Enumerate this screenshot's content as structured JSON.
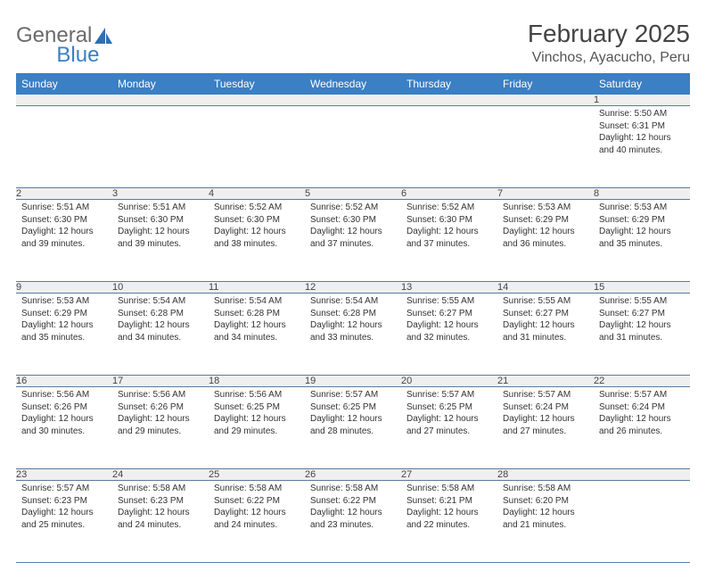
{
  "brand": {
    "part1": "General",
    "part2": "Blue",
    "logo_color": "#2f6fb0",
    "text_gray": "#6b6b6b"
  },
  "header": {
    "title": "February 2025",
    "location": "Vinchos, Ayacucho, Peru"
  },
  "colors": {
    "header_bg": "#3b7fc4",
    "header_text": "#ffffff",
    "daynum_bg": "#efefef",
    "row_border": "#5a7aa0",
    "body_text": "#333333"
  },
  "typography": {
    "title_fontsize": 28,
    "location_fontsize": 16,
    "weekday_fontsize": 12,
    "daynum_fontsize": 11,
    "cell_fontsize": 10
  },
  "weekdays": [
    "Sunday",
    "Monday",
    "Tuesday",
    "Wednesday",
    "Thursday",
    "Friday",
    "Saturday"
  ],
  "weeks": [
    [
      null,
      null,
      null,
      null,
      null,
      null,
      {
        "day": "1",
        "sunrise": "Sunrise: 5:50 AM",
        "sunset": "Sunset: 6:31 PM",
        "daylight": "Daylight: 12 hours and 40 minutes."
      }
    ],
    [
      {
        "day": "2",
        "sunrise": "Sunrise: 5:51 AM",
        "sunset": "Sunset: 6:30 PM",
        "daylight": "Daylight: 12 hours and 39 minutes."
      },
      {
        "day": "3",
        "sunrise": "Sunrise: 5:51 AM",
        "sunset": "Sunset: 6:30 PM",
        "daylight": "Daylight: 12 hours and 39 minutes."
      },
      {
        "day": "4",
        "sunrise": "Sunrise: 5:52 AM",
        "sunset": "Sunset: 6:30 PM",
        "daylight": "Daylight: 12 hours and 38 minutes."
      },
      {
        "day": "5",
        "sunrise": "Sunrise: 5:52 AM",
        "sunset": "Sunset: 6:30 PM",
        "daylight": "Daylight: 12 hours and 37 minutes."
      },
      {
        "day": "6",
        "sunrise": "Sunrise: 5:52 AM",
        "sunset": "Sunset: 6:30 PM",
        "daylight": "Daylight: 12 hours and 37 minutes."
      },
      {
        "day": "7",
        "sunrise": "Sunrise: 5:53 AM",
        "sunset": "Sunset: 6:29 PM",
        "daylight": "Daylight: 12 hours and 36 minutes."
      },
      {
        "day": "8",
        "sunrise": "Sunrise: 5:53 AM",
        "sunset": "Sunset: 6:29 PM",
        "daylight": "Daylight: 12 hours and 35 minutes."
      }
    ],
    [
      {
        "day": "9",
        "sunrise": "Sunrise: 5:53 AM",
        "sunset": "Sunset: 6:29 PM",
        "daylight": "Daylight: 12 hours and 35 minutes."
      },
      {
        "day": "10",
        "sunrise": "Sunrise: 5:54 AM",
        "sunset": "Sunset: 6:28 PM",
        "daylight": "Daylight: 12 hours and 34 minutes."
      },
      {
        "day": "11",
        "sunrise": "Sunrise: 5:54 AM",
        "sunset": "Sunset: 6:28 PM",
        "daylight": "Daylight: 12 hours and 34 minutes."
      },
      {
        "day": "12",
        "sunrise": "Sunrise: 5:54 AM",
        "sunset": "Sunset: 6:28 PM",
        "daylight": "Daylight: 12 hours and 33 minutes."
      },
      {
        "day": "13",
        "sunrise": "Sunrise: 5:55 AM",
        "sunset": "Sunset: 6:27 PM",
        "daylight": "Daylight: 12 hours and 32 minutes."
      },
      {
        "day": "14",
        "sunrise": "Sunrise: 5:55 AM",
        "sunset": "Sunset: 6:27 PM",
        "daylight": "Daylight: 12 hours and 31 minutes."
      },
      {
        "day": "15",
        "sunrise": "Sunrise: 5:55 AM",
        "sunset": "Sunset: 6:27 PM",
        "daylight": "Daylight: 12 hours and 31 minutes."
      }
    ],
    [
      {
        "day": "16",
        "sunrise": "Sunrise: 5:56 AM",
        "sunset": "Sunset: 6:26 PM",
        "daylight": "Daylight: 12 hours and 30 minutes."
      },
      {
        "day": "17",
        "sunrise": "Sunrise: 5:56 AM",
        "sunset": "Sunset: 6:26 PM",
        "daylight": "Daylight: 12 hours and 29 minutes."
      },
      {
        "day": "18",
        "sunrise": "Sunrise: 5:56 AM",
        "sunset": "Sunset: 6:25 PM",
        "daylight": "Daylight: 12 hours and 29 minutes."
      },
      {
        "day": "19",
        "sunrise": "Sunrise: 5:57 AM",
        "sunset": "Sunset: 6:25 PM",
        "daylight": "Daylight: 12 hours and 28 minutes."
      },
      {
        "day": "20",
        "sunrise": "Sunrise: 5:57 AM",
        "sunset": "Sunset: 6:25 PM",
        "daylight": "Daylight: 12 hours and 27 minutes."
      },
      {
        "day": "21",
        "sunrise": "Sunrise: 5:57 AM",
        "sunset": "Sunset: 6:24 PM",
        "daylight": "Daylight: 12 hours and 27 minutes."
      },
      {
        "day": "22",
        "sunrise": "Sunrise: 5:57 AM",
        "sunset": "Sunset: 6:24 PM",
        "daylight": "Daylight: 12 hours and 26 minutes."
      }
    ],
    [
      {
        "day": "23",
        "sunrise": "Sunrise: 5:57 AM",
        "sunset": "Sunset: 6:23 PM",
        "daylight": "Daylight: 12 hours and 25 minutes."
      },
      {
        "day": "24",
        "sunrise": "Sunrise: 5:58 AM",
        "sunset": "Sunset: 6:23 PM",
        "daylight": "Daylight: 12 hours and 24 minutes."
      },
      {
        "day": "25",
        "sunrise": "Sunrise: 5:58 AM",
        "sunset": "Sunset: 6:22 PM",
        "daylight": "Daylight: 12 hours and 24 minutes."
      },
      {
        "day": "26",
        "sunrise": "Sunrise: 5:58 AM",
        "sunset": "Sunset: 6:22 PM",
        "daylight": "Daylight: 12 hours and 23 minutes."
      },
      {
        "day": "27",
        "sunrise": "Sunrise: 5:58 AM",
        "sunset": "Sunset: 6:21 PM",
        "daylight": "Daylight: 12 hours and 22 minutes."
      },
      {
        "day": "28",
        "sunrise": "Sunrise: 5:58 AM",
        "sunset": "Sunset: 6:20 PM",
        "daylight": "Daylight: 12 hours and 21 minutes."
      },
      null
    ]
  ]
}
